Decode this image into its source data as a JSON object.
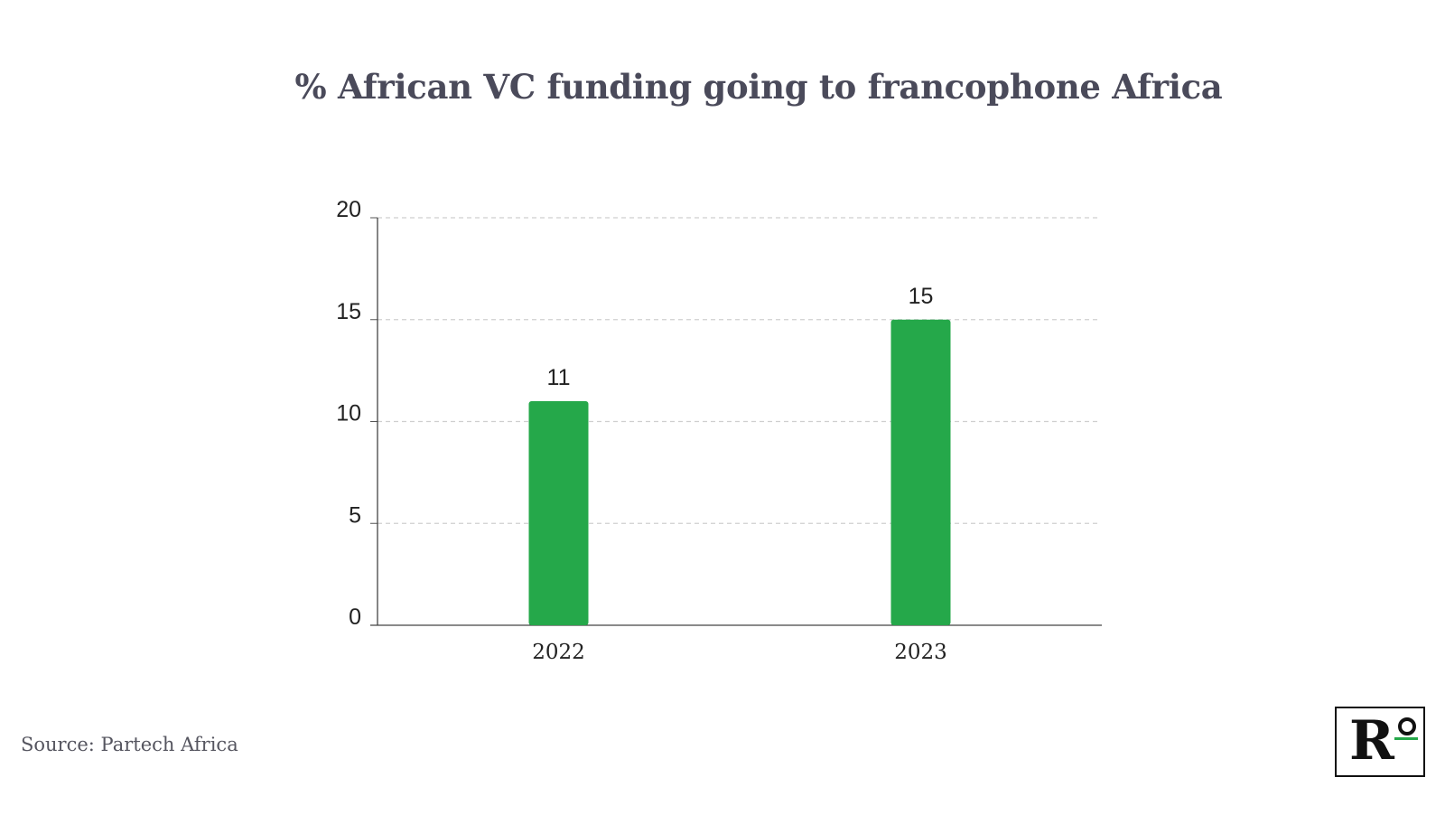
{
  "title": "% African VC funding going to francophone Africa",
  "source": "Source: Partech Africa",
  "colors": {
    "bar": "#25a84a",
    "title": "#4a4a5a",
    "axis_text": "#222222",
    "grid": "#cfcfcf"
  },
  "chart_data": {
    "type": "bar",
    "title": "% African VC funding going to francophone Africa",
    "categories": [
      "2022",
      "2023"
    ],
    "values": [
      11,
      15
    ],
    "data_labels": [
      "11",
      "15"
    ],
    "xlabel": "",
    "ylabel": "",
    "ylim": [
      0,
      20
    ],
    "yticks": [
      0,
      5,
      10,
      15,
      20
    ],
    "grid": "horizontal dashed",
    "legend": "none"
  }
}
